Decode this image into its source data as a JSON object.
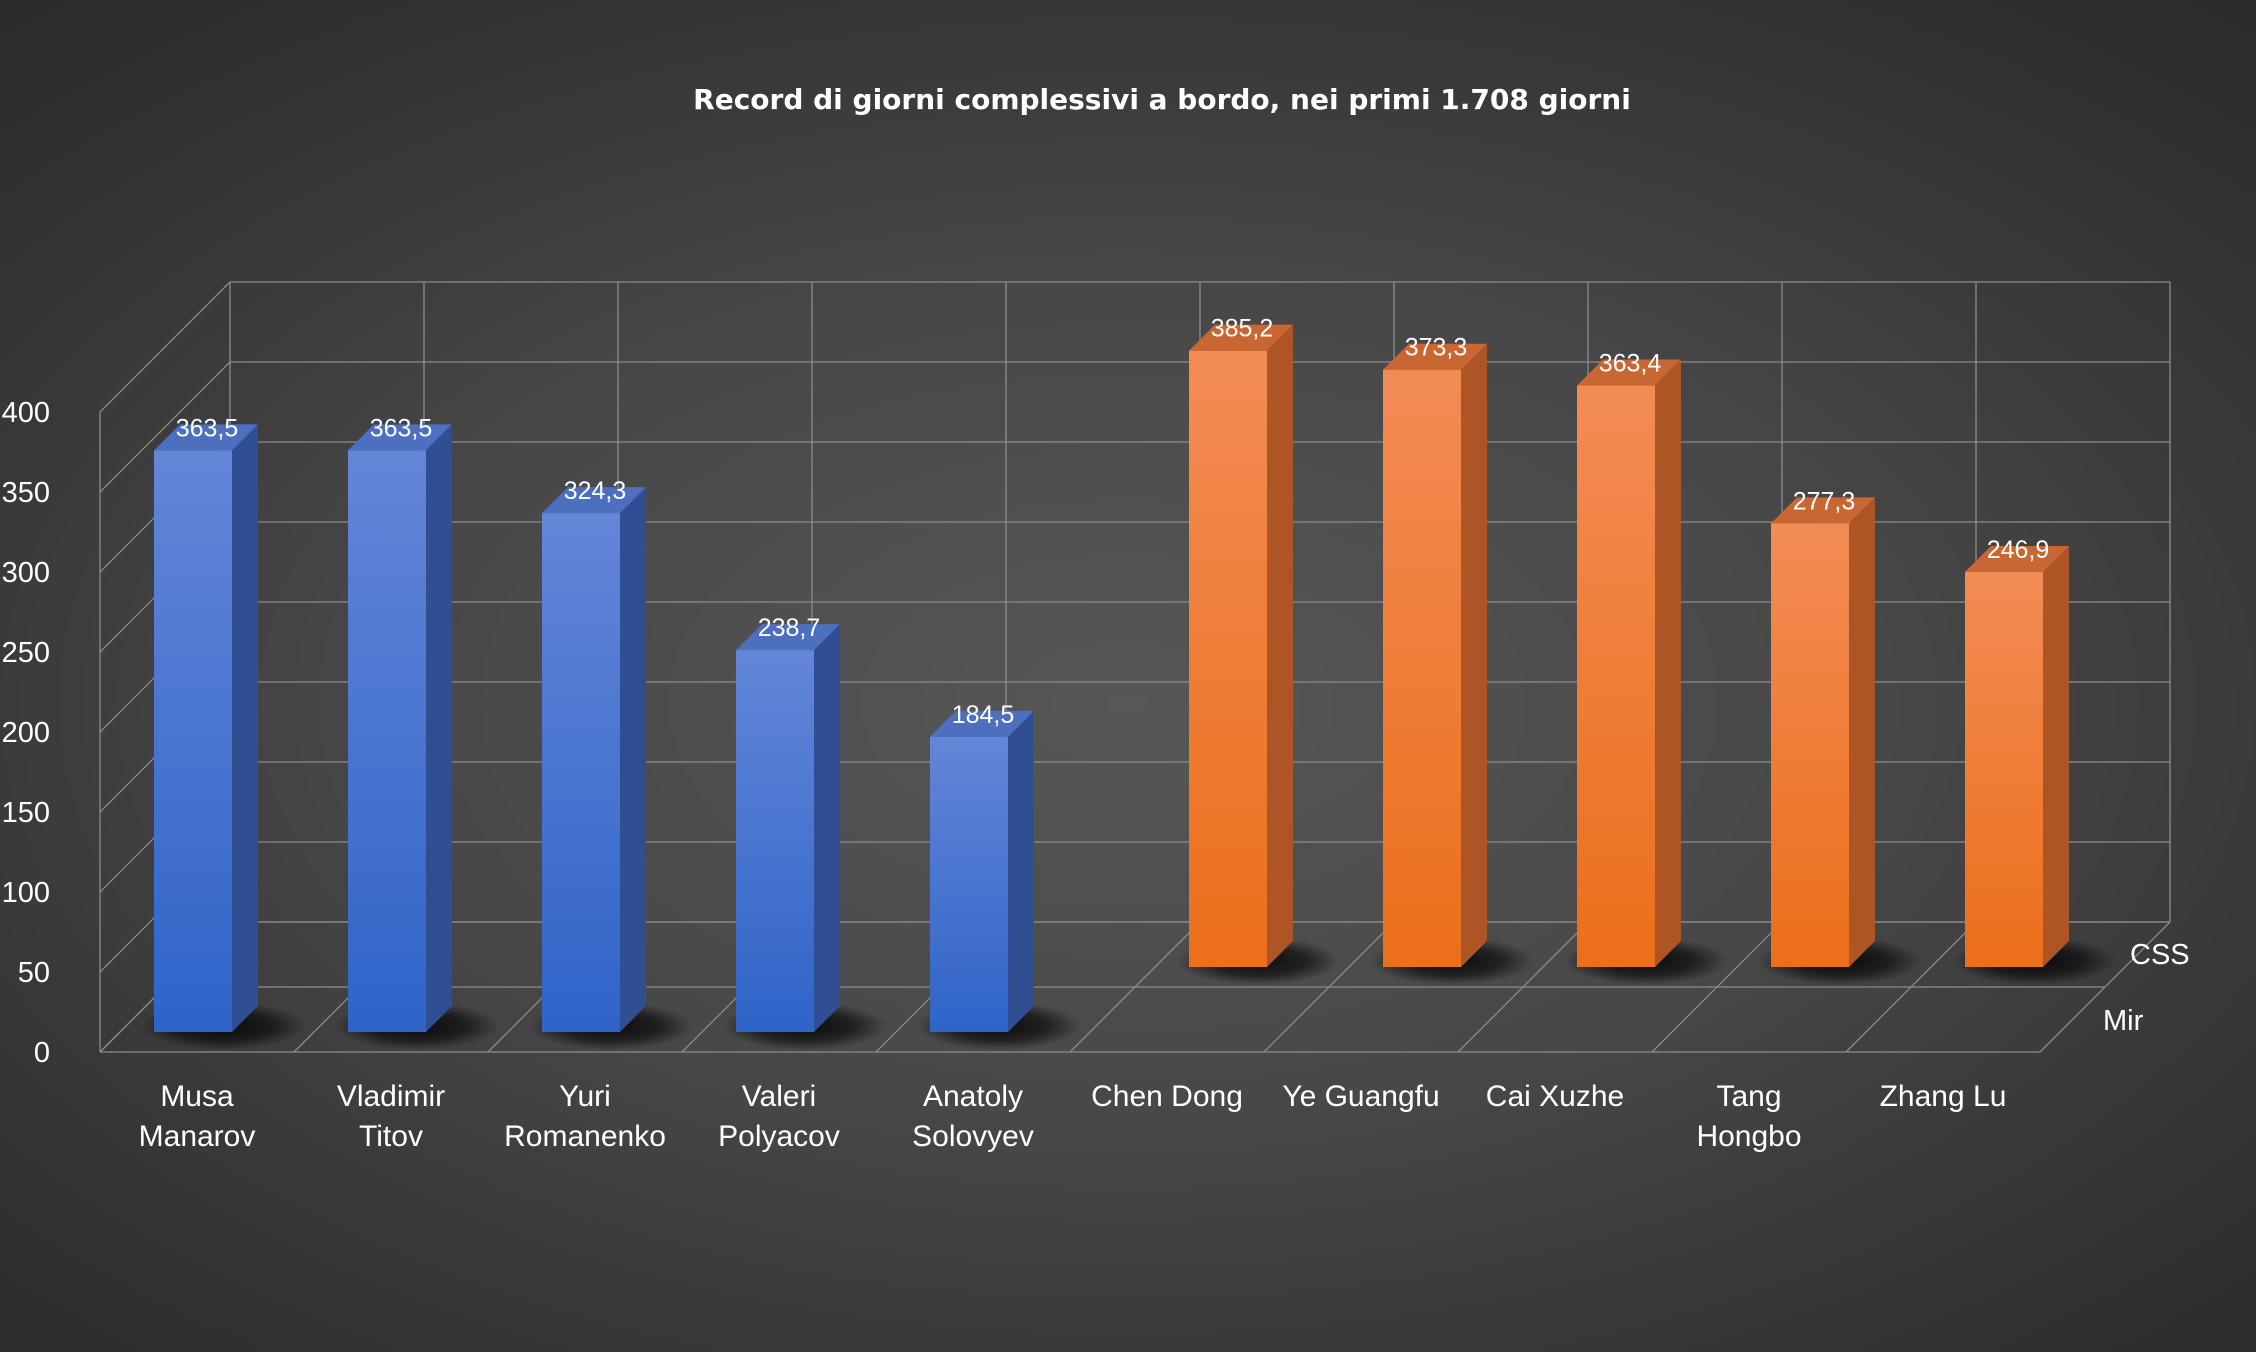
{
  "chart_data": {
    "type": "bar",
    "style": "3d-column",
    "title": "Record di giorni complessivi a bordo, nei primi 1.708 giorni",
    "categories": [
      [
        "Musa",
        "Manarov"
      ],
      [
        "Vladimir",
        "Titov"
      ],
      [
        "Yuri",
        "Romanenko"
      ],
      [
        "Valeri",
        "Polyacov"
      ],
      [
        "Anatoly",
        "Solovyev"
      ],
      [
        "Chen Dong"
      ],
      [
        "Ye Guangfu"
      ],
      [
        "Cai Xuzhe"
      ],
      [
        "Tang",
        "Hongbo"
      ],
      [
        "Zhang Lu"
      ]
    ],
    "series": [
      {
        "name": "Mir",
        "color": "#3f6fd0",
        "values": [
          363.5,
          363.5,
          324.3,
          238.7,
          184.5,
          null,
          null,
          null,
          null,
          null
        ],
        "labels": [
          "363,5",
          "363,5",
          "324,3",
          "238,7",
          "184,5",
          null,
          null,
          null,
          null,
          null
        ]
      },
      {
        "name": "CSS",
        "color": "#ef7d31",
        "values": [
          null,
          null,
          null,
          null,
          null,
          385.2,
          373.3,
          363.4,
          277.3,
          246.9
        ],
        "labels": [
          null,
          null,
          null,
          null,
          null,
          "385,2",
          "373,3",
          "363,4",
          "277,3",
          "246,9"
        ]
      }
    ],
    "yticks": [
      "0",
      "50",
      "100",
      "150",
      "200",
      "250",
      "300",
      "350",
      "400"
    ],
    "ylim": [
      0,
      400
    ],
    "grid": true,
    "legend": "none"
  }
}
